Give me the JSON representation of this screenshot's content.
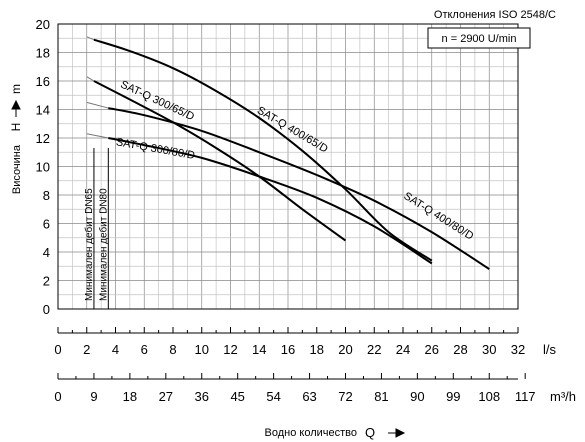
{
  "chart_data": {
    "type": "line",
    "header": "Отклонения ISO 2548/C",
    "speed_label": "n = 2900 U/min",
    "ylabel_text": "Височина",
    "ylabel_symbol": "H",
    "ylabel_unit": "m",
    "xlabel_text": "Водно количество",
    "xlabel_symbol": "Q",
    "ylim": [
      0,
      20
    ],
    "y_ticks": [
      0,
      2,
      4,
      6,
      8,
      10,
      12,
      14,
      16,
      18,
      20
    ],
    "xlim": [
      0,
      32
    ],
    "x_ticks": [
      0,
      2,
      4,
      6,
      8,
      10,
      12,
      14,
      16,
      18,
      20,
      22,
      24,
      26,
      28,
      30,
      32
    ],
    "x_unit": "l/s",
    "x2_ticks": [
      0,
      9,
      18,
      27,
      36,
      45,
      54,
      63,
      72,
      81,
      90,
      99,
      108,
      117
    ],
    "x2_unit": "m³/h",
    "grid": true,
    "min_flow_lines": [
      {
        "label": "Минимален дебит DN65",
        "x": 2.5
      },
      {
        "label": "Минимален дебит DN80",
        "x": 3.5
      }
    ],
    "series": [
      {
        "name": "SAT-Q 400/65/D",
        "x": [
          2.5,
          5,
          8,
          11,
          14,
          17,
          20,
          23,
          26
        ],
        "y": [
          18.9,
          18.1,
          16.9,
          15.3,
          13.4,
          11.1,
          8.4,
          5.4,
          3.4
        ],
        "lead_x": [
          2,
          2.5
        ],
        "lead_y": [
          19.1,
          18.9
        ]
      },
      {
        "name": "SAT-Q 300/65/D",
        "x": [
          2.5,
          5,
          8,
          11,
          14,
          17,
          20
        ],
        "y": [
          16.0,
          14.7,
          13.1,
          11.3,
          9.3,
          7.0,
          4.8
        ],
        "lead_x": [
          2,
          2.5
        ],
        "lead_y": [
          16.3,
          16.0
        ]
      },
      {
        "name": "SAT-Q 400/80/D",
        "x": [
          3.5,
          6,
          10,
          14,
          18,
          22,
          26,
          30
        ],
        "y": [
          14.1,
          13.6,
          12.5,
          11.0,
          9.4,
          7.6,
          5.4,
          2.8
        ],
        "lead_x": [
          2,
          3.5
        ],
        "lead_y": [
          14.5,
          14.1
        ]
      },
      {
        "name": "SAT-Q 300/80/D",
        "x": [
          3.5,
          6,
          10,
          14,
          18,
          22,
          26
        ],
        "y": [
          12.0,
          11.5,
          10.6,
          9.3,
          7.8,
          5.8,
          3.2
        ],
        "lead_x": [
          2,
          3.5
        ],
        "lead_y": [
          12.3,
          12.0
        ]
      }
    ]
  }
}
